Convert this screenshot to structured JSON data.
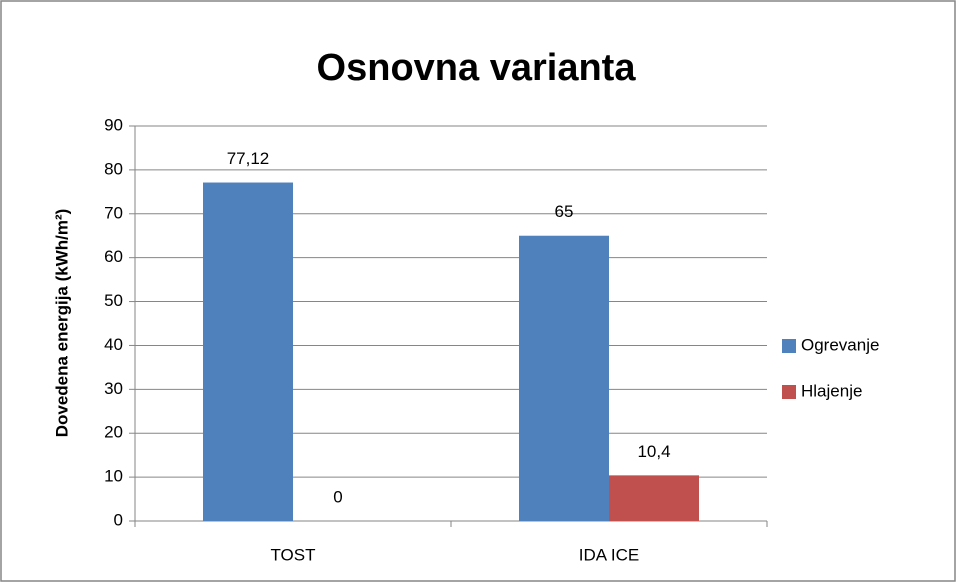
{
  "chart_data": {
    "type": "bar",
    "title": "Osnovna varianta",
    "y_label": "Dovedena energija (kWh/m²)",
    "categories": [
      "TOST",
      "IDA ICE"
    ],
    "series": [
      {
        "name": "Ogrevanje",
        "color": "#4f81bd",
        "values": [
          77.12,
          65
        ],
        "value_labels": [
          "77,12",
          "65"
        ]
      },
      {
        "name": "Hlajenje",
        "color": "#c0504d",
        "values": [
          0,
          10.4
        ],
        "value_labels": [
          "0",
          "10,4"
        ]
      }
    ],
    "ylim": [
      0,
      90
    ],
    "yticks": [
      0,
      10,
      20,
      30,
      40,
      50,
      60,
      70,
      80,
      90
    ],
    "grid": true,
    "legend": "right"
  }
}
